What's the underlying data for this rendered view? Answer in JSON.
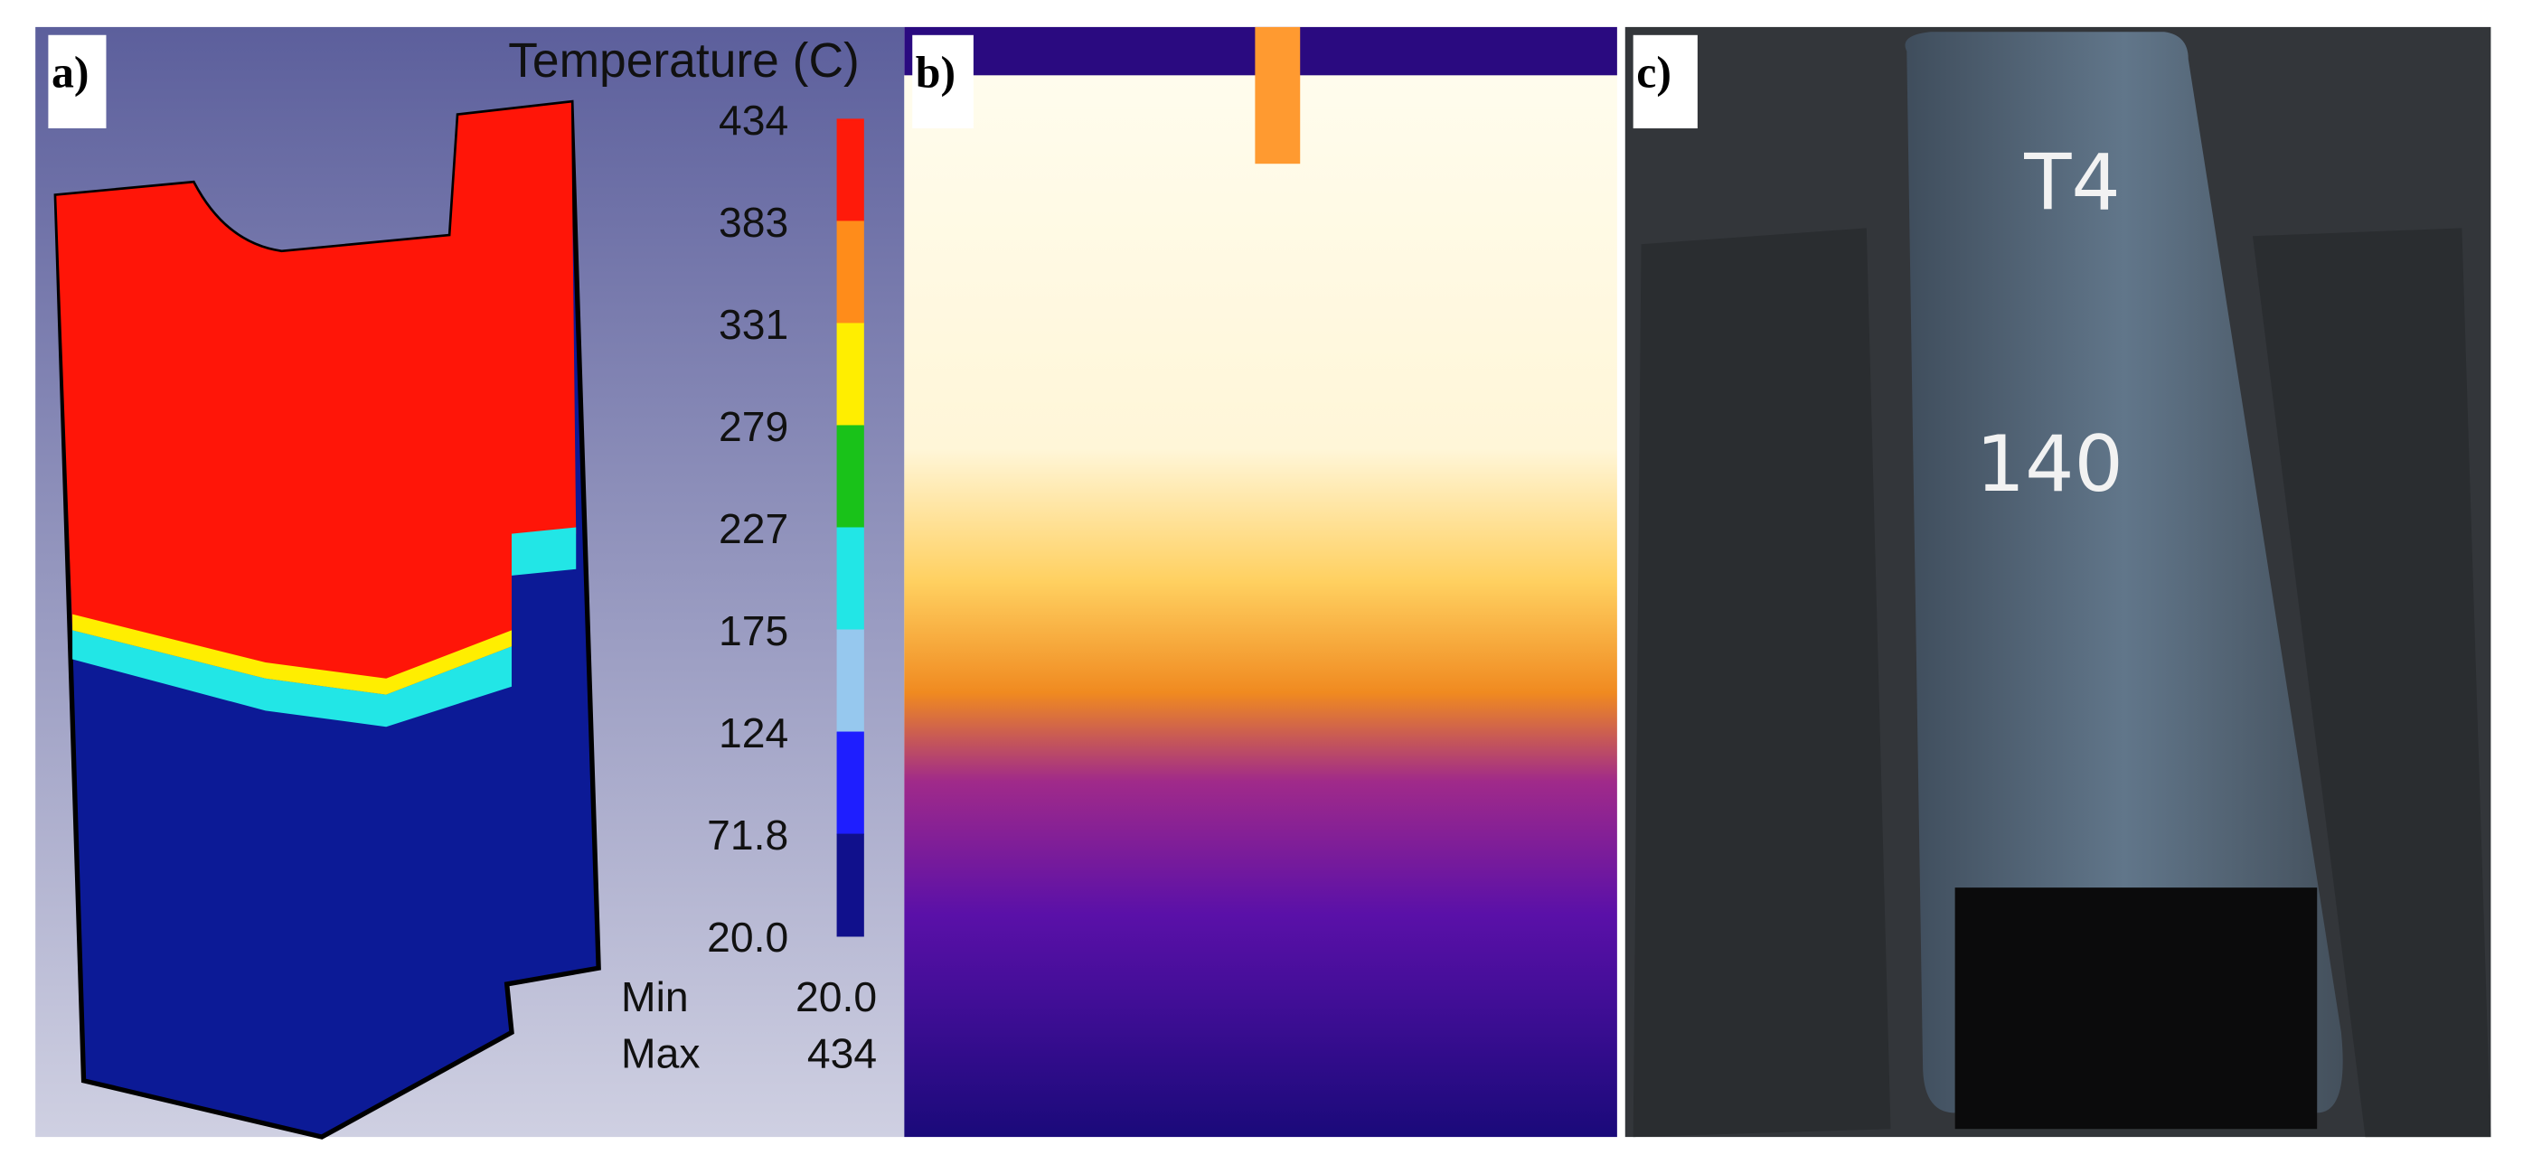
{
  "panels": [
    {
      "label": "a)"
    },
    {
      "label": "b)"
    },
    {
      "label": "c)"
    }
  ],
  "colorbar": {
    "title": "Temperature (C)",
    "ticks": [
      "434",
      "383",
      "331",
      "279",
      "227",
      "175",
      "124",
      "71.8",
      "20.0"
    ],
    "colors": [
      "#ff1a0a",
      "#ff8c1a",
      "#ffee00",
      "#19c219",
      "#22e6e6",
      "#96c8ee",
      "#1e1eff",
      "#10108c"
    ]
  },
  "stats": [
    {
      "label": "Min",
      "value": "20.0"
    },
    {
      "label": "Max",
      "value": "434"
    }
  ],
  "photo_marks": [
    "T4",
    "140"
  ]
}
